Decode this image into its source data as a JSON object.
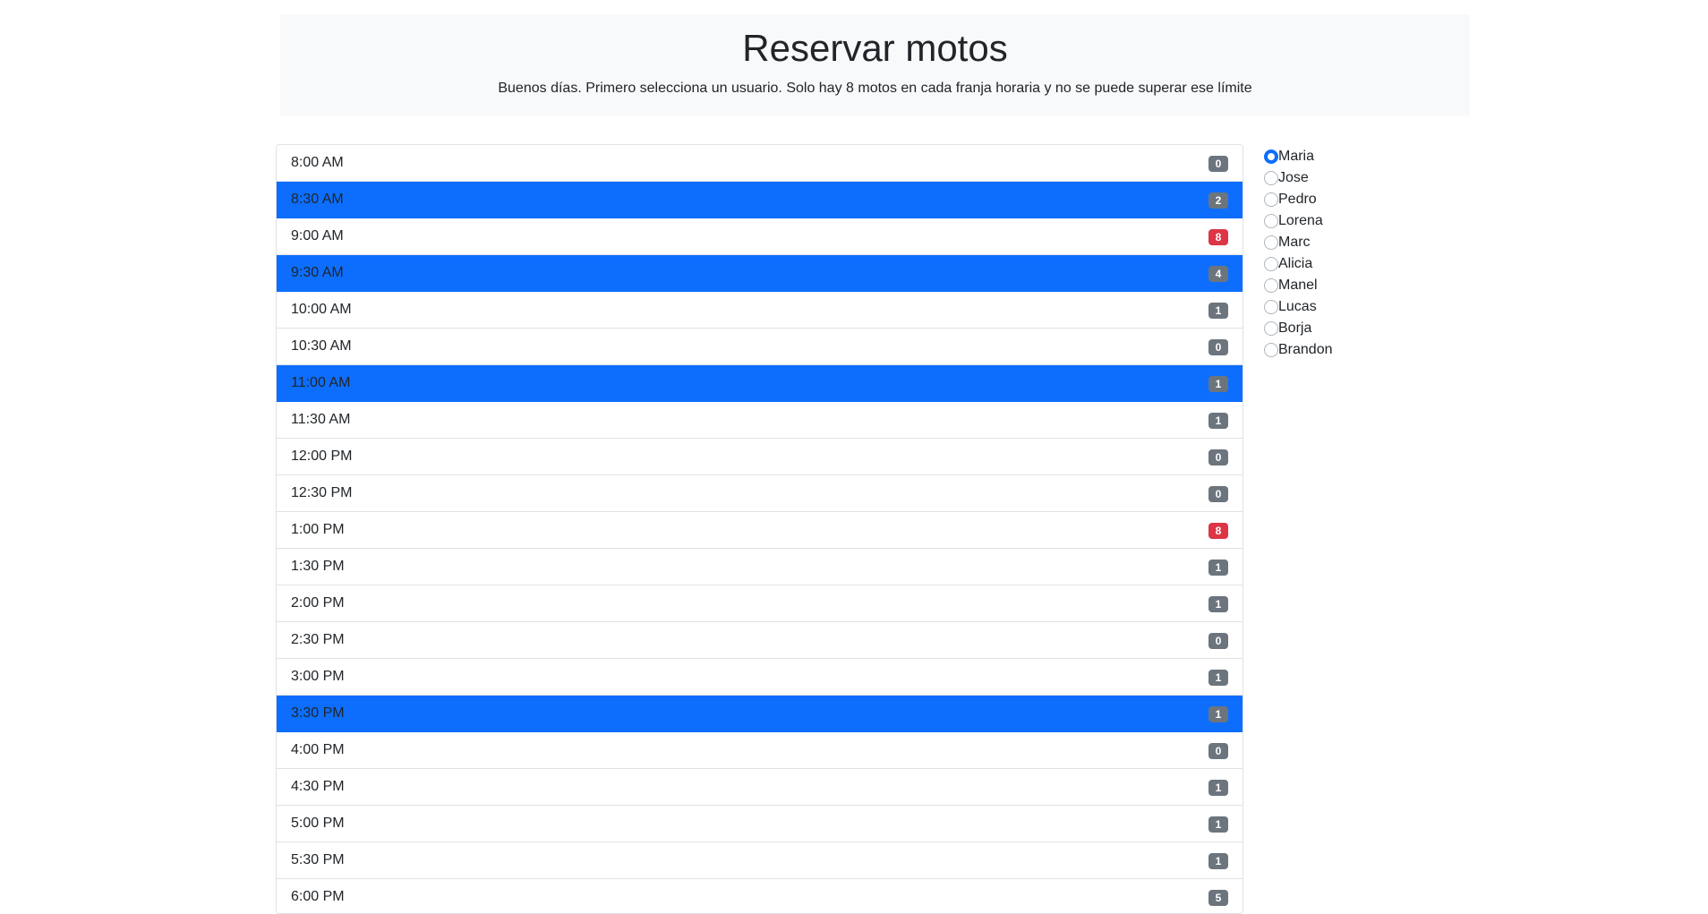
{
  "header": {
    "title": "Reservar motos",
    "subtitle": "Buenos días. Primero selecciona un usuario. Solo hay 8 motos en cada franja horaria y no se puede superar ese límite"
  },
  "slots": [
    {
      "time": "8:00 AM",
      "count": "0",
      "selected": false,
      "full": false
    },
    {
      "time": "8:30 AM",
      "count": "2",
      "selected": true,
      "full": false
    },
    {
      "time": "9:00 AM",
      "count": "8",
      "selected": false,
      "full": true
    },
    {
      "time": "9:30 AM",
      "count": "4",
      "selected": true,
      "full": false
    },
    {
      "time": "10:00 AM",
      "count": "1",
      "selected": false,
      "full": false
    },
    {
      "time": "10:30 AM",
      "count": "0",
      "selected": false,
      "full": false
    },
    {
      "time": "11:00 AM",
      "count": "1",
      "selected": true,
      "full": false
    },
    {
      "time": "11:30 AM",
      "count": "1",
      "selected": false,
      "full": false
    },
    {
      "time": "12:00 PM",
      "count": "0",
      "selected": false,
      "full": false
    },
    {
      "time": "12:30 PM",
      "count": "0",
      "selected": false,
      "full": false
    },
    {
      "time": "1:00 PM",
      "count": "8",
      "selected": false,
      "full": true
    },
    {
      "time": "1:30 PM",
      "count": "1",
      "selected": false,
      "full": false
    },
    {
      "time": "2:00 PM",
      "count": "1",
      "selected": false,
      "full": false
    },
    {
      "time": "2:30 PM",
      "count": "0",
      "selected": false,
      "full": false
    },
    {
      "time": "3:00 PM",
      "count": "1",
      "selected": false,
      "full": false
    },
    {
      "time": "3:30 PM",
      "count": "1",
      "selected": true,
      "full": false
    },
    {
      "time": "4:00 PM",
      "count": "0",
      "selected": false,
      "full": false
    },
    {
      "time": "4:30 PM",
      "count": "1",
      "selected": false,
      "full": false
    },
    {
      "time": "5:00 PM",
      "count": "1",
      "selected": false,
      "full": false
    },
    {
      "time": "5:30 PM",
      "count": "1",
      "selected": false,
      "full": false
    },
    {
      "time": "6:00 PM",
      "count": "5",
      "selected": false,
      "full": false
    }
  ],
  "users": [
    {
      "name": "Maria",
      "checked": true
    },
    {
      "name": "Jose",
      "checked": false
    },
    {
      "name": "Pedro",
      "checked": false
    },
    {
      "name": "Lorena",
      "checked": false
    },
    {
      "name": "Marc",
      "checked": false
    },
    {
      "name": "Alicia",
      "checked": false
    },
    {
      "name": "Manel",
      "checked": false
    },
    {
      "name": "Lucas",
      "checked": false
    },
    {
      "name": "Borja",
      "checked": false
    },
    {
      "name": "Brandon",
      "checked": false
    }
  ],
  "colors": {
    "selected": "#0d6efd",
    "badge": "#6c757d",
    "badge_full": "#dc3545"
  }
}
